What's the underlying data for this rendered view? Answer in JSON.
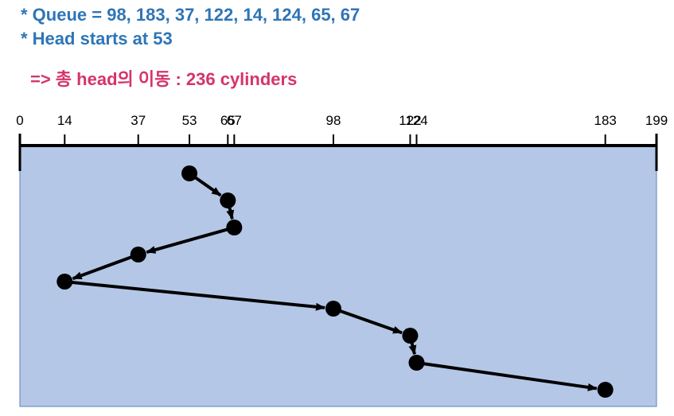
{
  "header": {
    "queue_line": "* Queue = 98, 183, 37, 122, 14, 124, 65, 67",
    "head_line": "* Head starts at 53",
    "summary_line": "=> 총 head의 이동 : 236 cylinders"
  },
  "colors": {
    "header_text": "#2e75b6",
    "summary_text": "#d6336c",
    "panel_fill": "#b4c7e7",
    "ink": "#000000"
  },
  "chart_data": {
    "type": "scatter",
    "axis": {
      "min": 0,
      "max": 199
    },
    "tick_labels": [
      "0",
      "14",
      "37",
      "53",
      "65",
      "67",
      "98",
      "122",
      "124",
      "183",
      "199"
    ],
    "tick_values": [
      0,
      14,
      37,
      53,
      65,
      67,
      98,
      122,
      124,
      183,
      199
    ],
    "visit_order": [
      53,
      65,
      67,
      37,
      14,
      98,
      122,
      124,
      183
    ]
  }
}
